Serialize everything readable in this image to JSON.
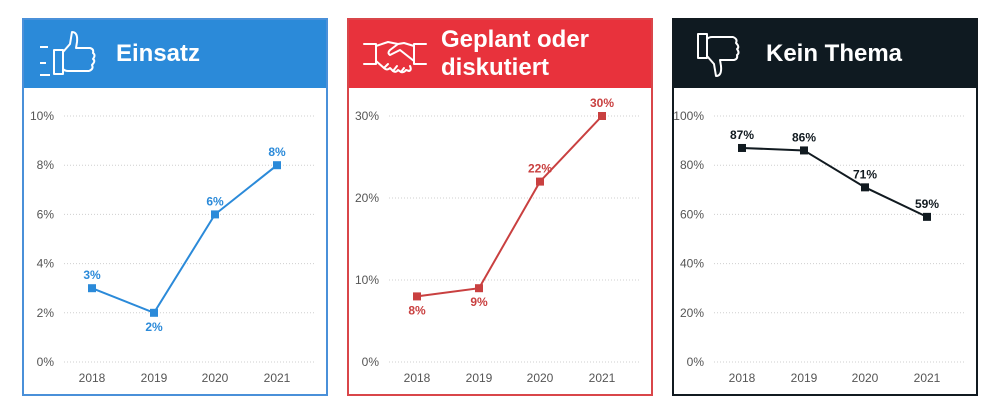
{
  "chart_data": [
    {
      "type": "line",
      "title": "Einsatz",
      "icon": "thumbs-up-icon",
      "color": "#2b8ad9",
      "header_color": "#2b8ad9",
      "categories": [
        "2018",
        "2019",
        "2020",
        "2021"
      ],
      "values": [
        3,
        2,
        6,
        8
      ],
      "data_labels": [
        "3%",
        "2%",
        "6%",
        "8%"
      ],
      "label_position": [
        "above",
        "below",
        "above",
        "above"
      ],
      "y_ticks": [
        0,
        2,
        4,
        6,
        8,
        10
      ],
      "y_tick_labels": [
        "0%",
        "2%",
        "4%",
        "6%",
        "8%",
        "10%"
      ],
      "ylim": [
        0,
        10
      ]
    },
    {
      "type": "line",
      "title": "Geplant oder diskutiert",
      "icon": "handshake-icon",
      "color": "#c94040",
      "header_color": "#e8323c",
      "categories": [
        "2018",
        "2019",
        "2020",
        "2021"
      ],
      "values": [
        8,
        9,
        22,
        30
      ],
      "data_labels": [
        "8%",
        "9%",
        "22%",
        "30%"
      ],
      "label_position": [
        "below",
        "below",
        "above",
        "above"
      ],
      "y_ticks": [
        0,
        10,
        20,
        30
      ],
      "y_tick_labels": [
        "0%",
        "10%",
        "20%",
        "30%"
      ],
      "ylim": [
        0,
        30
      ]
    },
    {
      "type": "line",
      "title": "Kein Thema",
      "icon": "thumbs-down-icon",
      "color": "#111a20",
      "header_color": "#0f1a21",
      "categories": [
        "2018",
        "2019",
        "2020",
        "2021"
      ],
      "values": [
        87,
        86,
        71,
        59
      ],
      "data_labels": [
        "87%",
        "86%",
        "71%",
        "59%"
      ],
      "label_position": [
        "above",
        "above",
        "above",
        "above"
      ],
      "y_ticks": [
        0,
        20,
        40,
        60,
        80,
        100
      ],
      "y_tick_labels": [
        "0%",
        "20%",
        "40%",
        "60%",
        "80%",
        "100%"
      ],
      "ylim": [
        0,
        100
      ]
    }
  ],
  "titles": {
    "panel1": "Einsatz",
    "panel2_line1": "Geplant oder",
    "panel2_line2": "diskutiert",
    "panel3": "Kein Thema"
  }
}
